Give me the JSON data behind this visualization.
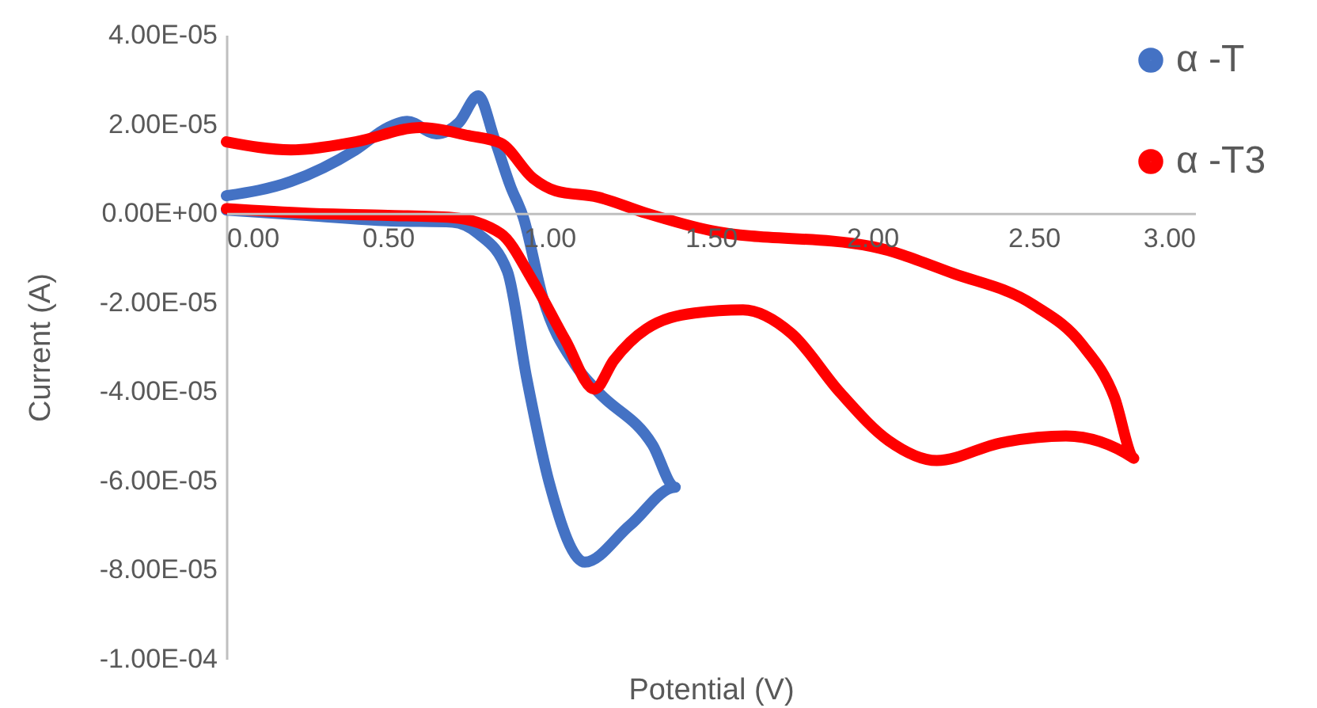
{
  "chart_data": {
    "type": "line",
    "xlabel": "Potential (V)",
    "ylabel": "Current (A)",
    "xlim": [
      0,
      3
    ],
    "ylim": [
      -0.0001,
      4e-05
    ],
    "xticks": [
      {
        "value": 0,
        "label": "0.00"
      },
      {
        "value": 0.5,
        "label": "0.50"
      },
      {
        "value": 1,
        "label": "1.00"
      },
      {
        "value": 1.5,
        "label": "1.50"
      },
      {
        "value": 2,
        "label": "2.00"
      },
      {
        "value": 2.5,
        "label": "2.50"
      },
      {
        "value": 3,
        "label": "3.00"
      }
    ],
    "yticks": [
      {
        "value": 4e-05,
        "label": "4.00E-05"
      },
      {
        "value": 2e-05,
        "label": "2.00E-05"
      },
      {
        "value": 0,
        "label": "0.00E+00"
      },
      {
        "value": -2e-05,
        "label": "-2.00E-05"
      },
      {
        "value": -4e-05,
        "label": "-4.00E-05"
      },
      {
        "value": -6e-05,
        "label": "-6.00E-05"
      },
      {
        "value": -8e-05,
        "label": "-8.00E-05"
      },
      {
        "value": -0.0001,
        "label": "-1.00E-04"
      }
    ],
    "legend": "top right",
    "series": [
      {
        "name": "α -T",
        "color": "#4472c4",
        "x": [
          0,
          0.2,
          0.4,
          0.5,
          0.56,
          0.65,
          0.72,
          0.78,
          0.83,
          0.88,
          0.92,
          0.98,
          1.08,
          1.15,
          1.32,
          1.39,
          1.25,
          1.11,
          1.0,
          0.93,
          0.87,
          0.78,
          0.7,
          0.5,
          0.25,
          0
        ],
        "values": [
          3.9e-06,
          7.1e-06,
          1.42e-05,
          1.92e-05,
          2.06e-05,
          1.78e-05,
          2.03e-05,
          2.63e-05,
          1.67e-05,
          6e-06,
          -1e-06,
          -1.9e-05,
          -3.4e-05,
          -4e-05,
          -5.2e-05,
          -6.15e-05,
          -7e-05,
          -7.83e-05,
          -6.05e-05,
          -3.7e-05,
          -1.3e-05,
          -4.6e-06,
          -2e-06,
          -1.7e-06,
          -5e-07,
          7e-07
        ]
      },
      {
        "name": "α -T3",
        "color": "#ff0000",
        "x": [
          0,
          0.2,
          0.4,
          0.6,
          0.75,
          0.85,
          0.95,
          1.02,
          1.15,
          1.3,
          1.5,
          2.0,
          2.25,
          2.5,
          2.65,
          2.75,
          2.81,
          2.6,
          2.4,
          2.2,
          2.05,
          1.9,
          1.75,
          1.6,
          1.45,
          1.3,
          1.2,
          1.14,
          1.05,
          0.95,
          0.85,
          0.7,
          0.5,
          0.25,
          0
        ],
        "values": [
          1.6e-05,
          1.42e-05,
          1.6e-05,
          1.92e-05,
          1.74e-05,
          1.57e-05,
          7.8e-06,
          5e-06,
          3.6e-06,
          0,
          -3.9e-06,
          -7.5e-06,
          -1.35e-05,
          -2.06e-05,
          -2.95e-05,
          -4.13e-05,
          -5.5e-05,
          -5e-05,
          -5.15e-05,
          -5.55e-05,
          -5.1e-05,
          -4.02e-05,
          -2.7e-05,
          -2.17e-05,
          -2.24e-05,
          -2.6e-05,
          -3.3e-05,
          -3.95e-05,
          -2.85e-05,
          -1.53e-05,
          -4.6e-06,
          -1e-06,
          -5e-07,
          0,
          1e-06
        ]
      }
    ]
  }
}
